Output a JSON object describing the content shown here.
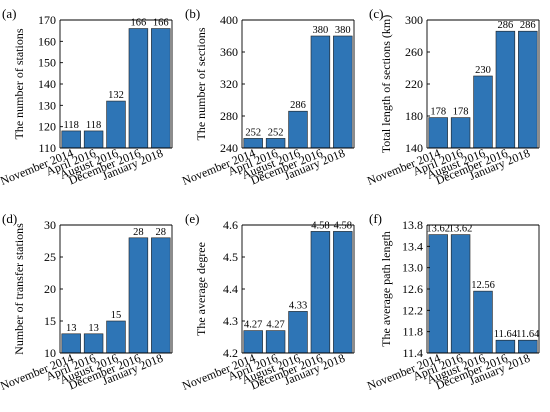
{
  "colors": {
    "bar": "#2e75b6",
    "bar_edge": "#1f1f1f",
    "axis": "#000000"
  },
  "chart_data": [
    {
      "type": "bar",
      "panel_label": "(a)",
      "ylabel": "The number of stations",
      "categories": [
        "November 2014",
        "April 2016",
        "August 2016",
        "December 2016",
        "January 2018"
      ],
      "values": [
        118,
        118,
        132,
        166,
        166
      ],
      "value_labels": [
        "118",
        "118",
        "132",
        "166",
        "166"
      ],
      "ylim": [
        110,
        170
      ],
      "yticks": [
        110,
        120,
        130,
        140,
        150,
        160,
        170
      ],
      "ytick_labels": [
        "110",
        "120",
        "130",
        "140",
        "150",
        "160",
        "170"
      ]
    },
    {
      "type": "bar",
      "panel_label": "(b)",
      "ylabel": "The number of sections",
      "categories": [
        "November 2014",
        "April 2016",
        "August 2016",
        "December 2016",
        "January 2018"
      ],
      "values": [
        252,
        252,
        286,
        380,
        380
      ],
      "value_labels": [
        "252",
        "252",
        "286",
        "380",
        "380"
      ],
      "ylim": [
        240,
        400
      ],
      "yticks": [
        240,
        280,
        320,
        360,
        400
      ],
      "ytick_labels": [
        "240",
        "280",
        "320",
        "360",
        "400"
      ]
    },
    {
      "type": "bar",
      "panel_label": "(c)",
      "ylabel": "Total length of sections (km)",
      "categories": [
        "November 2014",
        "April 2016",
        "August 2016",
        "December 2016",
        "January 2018"
      ],
      "values": [
        178,
        178,
        230,
        286,
        286
      ],
      "value_labels": [
        "178",
        "178",
        "230",
        "286",
        "286"
      ],
      "ylim": [
        140,
        300
      ],
      "yticks": [
        140,
        180,
        220,
        260,
        300
      ],
      "ytick_labels": [
        "140",
        "180",
        "220",
        "260",
        "300"
      ]
    },
    {
      "type": "bar",
      "panel_label": "(d)",
      "ylabel": "Number of transfer stations",
      "categories": [
        "November 2014",
        "April 2016",
        "August 2016",
        "December 2016",
        "January 2018"
      ],
      "values": [
        13,
        13,
        15,
        28,
        28
      ],
      "value_labels": [
        "13",
        "13",
        "15",
        "28",
        "28"
      ],
      "ylim": [
        10,
        30
      ],
      "yticks": [
        10,
        15,
        20,
        25,
        30
      ],
      "ytick_labels": [
        "10",
        "15",
        "20",
        "25",
        "30"
      ]
    },
    {
      "type": "bar",
      "panel_label": "(e)",
      "ylabel": "The average degree",
      "categories": [
        "November 2014",
        "April 2016",
        "August 2016",
        "December 2016",
        "January 2018"
      ],
      "values": [
        4.27,
        4.27,
        4.33,
        4.58,
        4.58
      ],
      "value_labels": [
        "4.27",
        "4.27",
        "4.33",
        "4.58",
        "4.58"
      ],
      "ylim": [
        4.2,
        4.6
      ],
      "yticks": [
        4.2,
        4.3,
        4.4,
        4.5,
        4.6
      ],
      "ytick_labels": [
        "4.2",
        "4.3",
        "4.4",
        "4.5",
        "4.6"
      ]
    },
    {
      "type": "bar",
      "panel_label": "(f)",
      "ylabel": "The average path length",
      "categories": [
        "November 2014",
        "April 2016",
        "August 2016",
        "December 2016",
        "January 2018"
      ],
      "values": [
        13.62,
        13.62,
        12.56,
        11.64,
        11.64
      ],
      "value_labels": [
        "13.62",
        "13.62",
        "12.56",
        "11.64",
        "11.64"
      ],
      "ylim": [
        11.4,
        13.8
      ],
      "yticks": [
        11.4,
        11.8,
        12.2,
        12.6,
        13.0,
        13.4,
        13.8
      ],
      "ytick_labels": [
        "11.4",
        "11.8",
        "12.2",
        "12.6",
        "13.0",
        "13.4",
        "13.8"
      ]
    }
  ]
}
